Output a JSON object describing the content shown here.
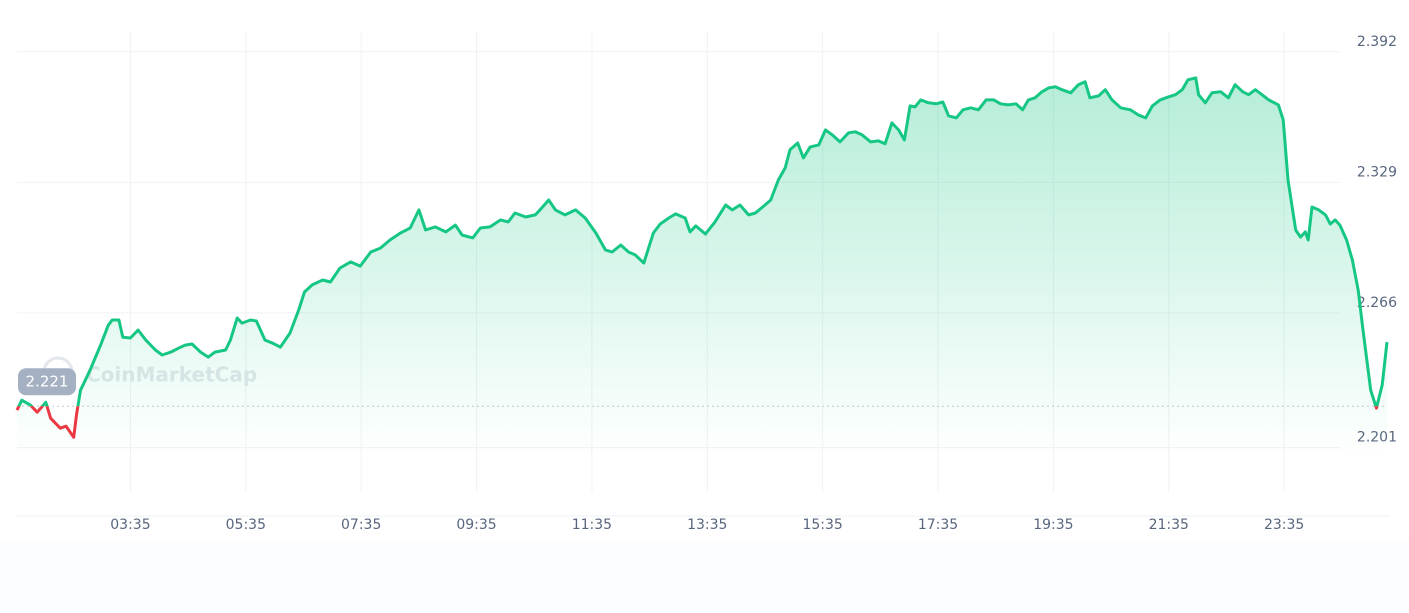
{
  "chart_data": {
    "type": "line",
    "watermark": "CoinMarketCap",
    "reference_line": 2.221,
    "negative_color": "#ea3943",
    "grid": true,
    "xlim": [
      97,
      1522
    ],
    "xticks": [
      {
        "value": 215,
        "label": "03:35"
      },
      {
        "value": 335,
        "label": "05:35"
      },
      {
        "value": 455,
        "label": "07:35"
      },
      {
        "value": 575,
        "label": "09:35"
      },
      {
        "value": 695,
        "label": "11:35"
      },
      {
        "value": 815,
        "label": "13:35"
      },
      {
        "value": 935,
        "label": "15:35"
      },
      {
        "value": 1055,
        "label": "17:35"
      },
      {
        "value": 1175,
        "label": "19:35"
      },
      {
        "value": 1295,
        "label": "21:35"
      },
      {
        "value": 1415,
        "label": "23:35"
      }
    ],
    "ylim": [
      2.196,
      2.403
    ],
    "yticks": [
      2.201,
      2.266,
      2.329,
      2.392
    ],
    "x": [
      97,
      102,
      111,
      118,
      127,
      132,
      142,
      148,
      156,
      159,
      163,
      173,
      184,
      192,
      196,
      203,
      207,
      215,
      223,
      231,
      241,
      248,
      257,
      265,
      272,
      279,
      288,
      296,
      303,
      314,
      319,
      326,
      331,
      340,
      346,
      355,
      363,
      371,
      381,
      390,
      396,
      404,
      415,
      423,
      433,
      444,
      454,
      465,
      475,
      485,
      496,
      506,
      515,
      522,
      532,
      543,
      553,
      560,
      571,
      579,
      589,
      600,
      608,
      615,
      626,
      636,
      641,
      650,
      657,
      667,
      678,
      688,
      699,
      709,
      716,
      725,
      733,
      740,
      749,
      759,
      766,
      775,
      782,
      792,
      797,
      803,
      813,
      823,
      834,
      841,
      849,
      858,
      865,
      875,
      881,
      889,
      896,
      901,
      909,
      915,
      922,
      931,
      938,
      945,
      953,
      962,
      969,
      976,
      985,
      993,
      1000,
      1007,
      1014,
      1020,
      1026,
      1031,
      1037,
      1045,
      1053,
      1060,
      1066,
      1074,
      1081,
      1089,
      1097,
      1105,
      1113,
      1120,
      1128,
      1136,
      1143,
      1149,
      1156,
      1163,
      1170,
      1177,
      1184,
      1193,
      1201,
      1208,
      1213,
      1222,
      1229,
      1236,
      1245,
      1255,
      1263,
      1271,
      1278,
      1286,
      1295,
      1302,
      1309,
      1315,
      1323,
      1326,
      1333,
      1340,
      1349,
      1357,
      1364,
      1372,
      1378,
      1385,
      1392,
      1399,
      1409,
      1414,
      1419,
      1427,
      1432,
      1437,
      1440,
      1444,
      1451,
      1458,
      1463,
      1468,
      1473,
      1480,
      1486,
      1492,
      1497,
      1505,
      1511,
      1517,
      1522
    ],
    "series": [
      {
        "color": "#16c784",
        "values": [
          2.2191,
          2.2239,
          2.2215,
          2.2181,
          2.2229,
          2.2152,
          2.2104,
          2.2114,
          2.206,
          2.2172,
          2.2287,
          2.2384,
          2.2505,
          2.2601,
          2.2626,
          2.2626,
          2.2543,
          2.2539,
          2.2577,
          2.2529,
          2.2481,
          2.2457,
          2.2471,
          2.249,
          2.2505,
          2.251,
          2.2471,
          2.2447,
          2.2471,
          2.2481,
          2.2529,
          2.2635,
          2.2611,
          2.2626,
          2.2621,
          2.2529,
          2.2514,
          2.2495,
          2.2563,
          2.2674,
          2.2761,
          2.2795,
          2.2819,
          2.2809,
          2.2877,
          2.2906,
          2.2886,
          2.2954,
          2.2973,
          2.3012,
          2.3046,
          2.307,
          2.3157,
          2.306,
          2.3075,
          2.3051,
          2.3084,
          2.3036,
          2.3022,
          2.307,
          2.3075,
          2.3109,
          2.3099,
          2.3142,
          2.3123,
          2.3133,
          2.3157,
          2.3205,
          2.3157,
          2.3133,
          2.3157,
          2.3118,
          2.3046,
          2.2964,
          2.2954,
          2.2988,
          2.2954,
          2.294,
          2.2901,
          2.3046,
          2.3089,
          2.3118,
          2.3138,
          2.3118,
          2.3051,
          2.308,
          2.3041,
          2.3099,
          2.3181,
          2.3157,
          2.3181,
          2.3133,
          2.3142,
          2.3181,
          2.3205,
          2.3302,
          2.336,
          2.3447,
          2.348,
          2.3408,
          2.3461,
          2.3471,
          2.3543,
          2.3519,
          2.3485,
          2.3529,
          2.3534,
          2.3519,
          2.3485,
          2.349,
          2.3476,
          2.3577,
          2.3543,
          2.3495,
          2.3659,
          2.3654,
          2.3688,
          2.3674,
          2.3669,
          2.3678,
          2.3611,
          2.3601,
          2.364,
          2.365,
          2.364,
          2.3688,
          2.3688,
          2.3669,
          2.3664,
          2.3669,
          2.364,
          2.3688,
          2.3698,
          2.3727,
          2.3746,
          2.3751,
          2.3737,
          2.3722,
          2.3761,
          2.3775,
          2.3698,
          2.3707,
          2.3737,
          2.3688,
          2.365,
          2.364,
          2.3616,
          2.3601,
          2.3659,
          2.3688,
          2.3703,
          2.3713,
          2.3737,
          2.3785,
          2.3794,
          2.3713,
          2.3674,
          2.3722,
          2.3727,
          2.3698,
          2.3761,
          2.3727,
          2.3713,
          2.3737,
          2.3713,
          2.3688,
          2.3664,
          2.3592,
          2.3302,
          2.306,
          2.3026,
          2.3051,
          2.3012,
          2.3171,
          2.3157,
          2.3133,
          2.3089,
          2.3109,
          2.3084,
          2.3012,
          2.2915,
          2.277,
          2.2577,
          2.2287,
          2.2201,
          2.2312,
          2.2519
        ]
      }
    ]
  }
}
